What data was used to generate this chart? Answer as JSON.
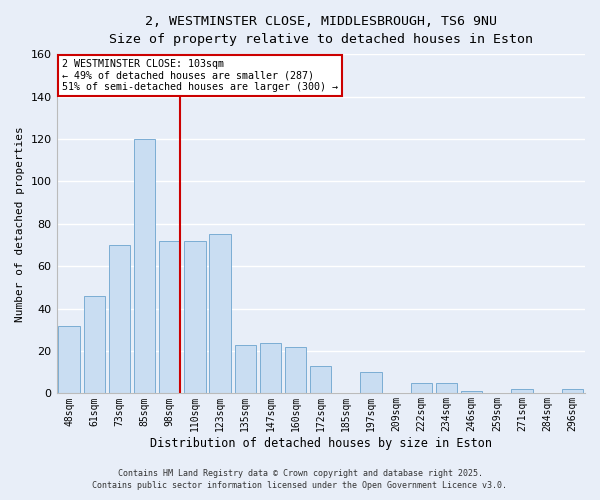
{
  "title_line1": "2, WESTMINSTER CLOSE, MIDDLESBROUGH, TS6 9NU",
  "title_line2": "Size of property relative to detached houses in Eston",
  "xlabel": "Distribution of detached houses by size in Eston",
  "ylabel": "Number of detached properties",
  "categories": [
    "48sqm",
    "61sqm",
    "73sqm",
    "85sqm",
    "98sqm",
    "110sqm",
    "123sqm",
    "135sqm",
    "147sqm",
    "160sqm",
    "172sqm",
    "185sqm",
    "197sqm",
    "209sqm",
    "222sqm",
    "234sqm",
    "246sqm",
    "259sqm",
    "271sqm",
    "284sqm",
    "296sqm"
  ],
  "values": [
    32,
    46,
    70,
    120,
    72,
    72,
    75,
    23,
    24,
    22,
    13,
    0,
    10,
    0,
    5,
    5,
    1,
    0,
    2,
    0,
    2
  ],
  "bar_color": "#c9ddf2",
  "bar_edge_color": "#7badd4",
  "vline_color": "#cc0000",
  "ylim": [
    0,
    160
  ],
  "yticks": [
    0,
    20,
    40,
    60,
    80,
    100,
    120,
    140,
    160
  ],
  "annotation_title": "2 WESTMINSTER CLOSE: 103sqm",
  "annotation_line1": "← 49% of detached houses are smaller (287)",
  "annotation_line2": "51% of semi-detached houses are larger (300) →",
  "annotation_box_color": "#ffffff",
  "annotation_box_edge": "#cc0000",
  "footer_line1": "Contains HM Land Registry data © Crown copyright and database right 2025.",
  "footer_line2": "Contains public sector information licensed under the Open Government Licence v3.0.",
  "background_color": "#e8eef8",
  "grid_color": "#ffffff",
  "title_fontsize": 9.5,
  "subtitle_fontsize": 8.5
}
